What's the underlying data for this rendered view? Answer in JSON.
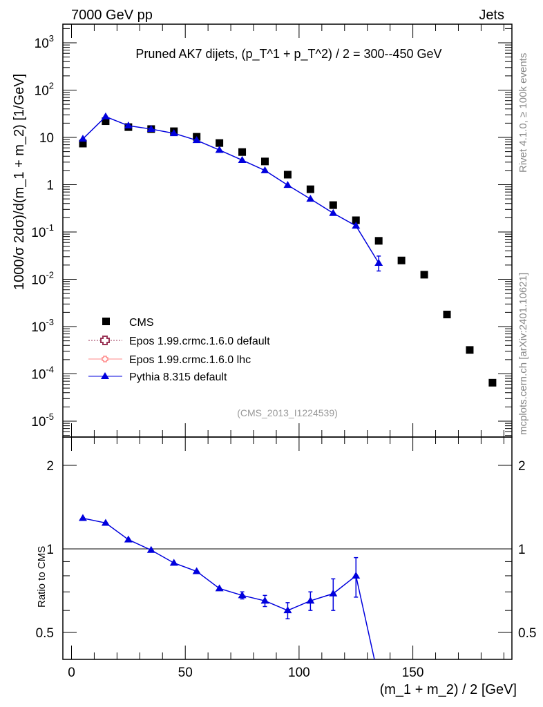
{
  "header": {
    "left": "7000 GeV pp",
    "right": "Jets"
  },
  "side": {
    "rivet": "Rivet 4.1.0, ≥ 100k events",
    "mcplots": "mcplots.cern.ch [arXiv:2401.10621]"
  },
  "chart_data": [
    {
      "type": "scatter",
      "title": "Pruned AK7 dijets, (p_T^1 + p_T^2) / 2 = 300--450 GeV",
      "title_parts": {
        "a": "Pruned AK7 dijets, (p",
        "s1": "1",
        "b": " + p",
        "s2": "2",
        "c": ") / 2 = 300--450 GeV",
        "sub": "T"
      },
      "ylabel": "1000/σ  2dσ)/d(m_1 + m_2) [1/GeV]",
      "yscale": "log",
      "ylim": [
        5e-06,
        2000
      ],
      "xlim": [
        -2,
        193
      ],
      "ytick_labels": [
        {
          "m": "10",
          "e": "3"
        },
        {
          "m": "10",
          "e": "2"
        },
        {
          "m": "10",
          "e": ""
        },
        {
          "m": "1",
          "e": ""
        },
        {
          "m": "10",
          "e": "-1"
        },
        {
          "m": "10",
          "e": "-2"
        },
        {
          "m": "10",
          "e": "-3"
        },
        {
          "m": "10",
          "e": "-4"
        },
        {
          "m": "10",
          "e": "-5"
        }
      ],
      "ytick_values": [
        1000,
        100,
        10,
        1,
        0.1,
        0.01,
        0.001,
        0.0001,
        1e-05
      ],
      "annotation": "(CMS_2013_I1224539)",
      "legend": {
        "placement": "lower-left",
        "entries": [
          "CMS",
          "Epos 1.99.crmc.1.6.0 default",
          "Epos 1.99.crmc.1.6.0 lhc",
          "Pythia 8.315 default"
        ]
      },
      "colors": {
        "CMS": "#000000",
        "Epos default": "#993355",
        "Epos lhc": "#ff8888",
        "Pythia": "#0000dd"
      },
      "series": [
        {
          "name": "CMS",
          "x": [
            5,
            15,
            25,
            35,
            45,
            55,
            65,
            75,
            85,
            95,
            105,
            115,
            125,
            135,
            145,
            155,
            165,
            175,
            185
          ],
          "y": [
            7.4,
            22,
            16.5,
            15,
            13.5,
            10.3,
            7.6,
            4.9,
            3.1,
            1.63,
            0.8,
            0.37,
            0.177,
            0.065,
            0.025,
            0.0125,
            0.0018,
            0.00032,
            6.5e-05
          ]
        },
        {
          "name": "Pythia 8.315 default",
          "x": [
            5,
            15,
            25,
            35,
            45,
            55,
            65,
            75,
            85,
            95,
            105,
            115,
            125,
            135
          ],
          "y": [
            9.3,
            27.5,
            17.7,
            15,
            12.2,
            8.7,
            5.4,
            3.3,
            2.0,
            0.98,
            0.5,
            0.25,
            0.135,
            0.022
          ],
          "yerr_low": [
            0,
            0,
            0,
            0,
            0,
            0,
            0,
            0,
            0,
            0,
            0,
            0,
            0,
            0.007
          ],
          "yerr_high": [
            0,
            0,
            0,
            0,
            0,
            0,
            0,
            0,
            0,
            0,
            0,
            0,
            0,
            0.009
          ]
        }
      ]
    },
    {
      "type": "line",
      "ylabel": "Ratio to CMS",
      "xlabel": "(m_1 + m_2) / 2 [GeV]",
      "yscale": "log",
      "ylim": [
        0.4,
        2.5
      ],
      "ytick_labels": [
        "2",
        "1",
        "0.5"
      ],
      "ytick_values": [
        2,
        1,
        0.5
      ],
      "xtick_labels": [
        "0",
        "50",
        "100",
        "150"
      ],
      "xtick_values": [
        0,
        50,
        100,
        150
      ],
      "series": [
        {
          "name": "Pythia 8.315 default",
          "x": [
            5,
            15,
            25,
            35,
            45,
            55,
            65,
            75,
            85,
            95,
            105,
            115,
            125,
            135
          ],
          "y": [
            1.29,
            1.24,
            1.08,
            0.99,
            0.89,
            0.83,
            0.72,
            0.68,
            0.65,
            0.6,
            0.65,
            0.69,
            0.8,
            0.34
          ],
          "err": [
            0.01,
            0.01,
            0.01,
            0.01,
            0.01,
            0.01,
            0.01,
            0.02,
            0.03,
            0.04,
            0.05,
            0.09,
            0.13,
            0
          ]
        }
      ]
    }
  ]
}
